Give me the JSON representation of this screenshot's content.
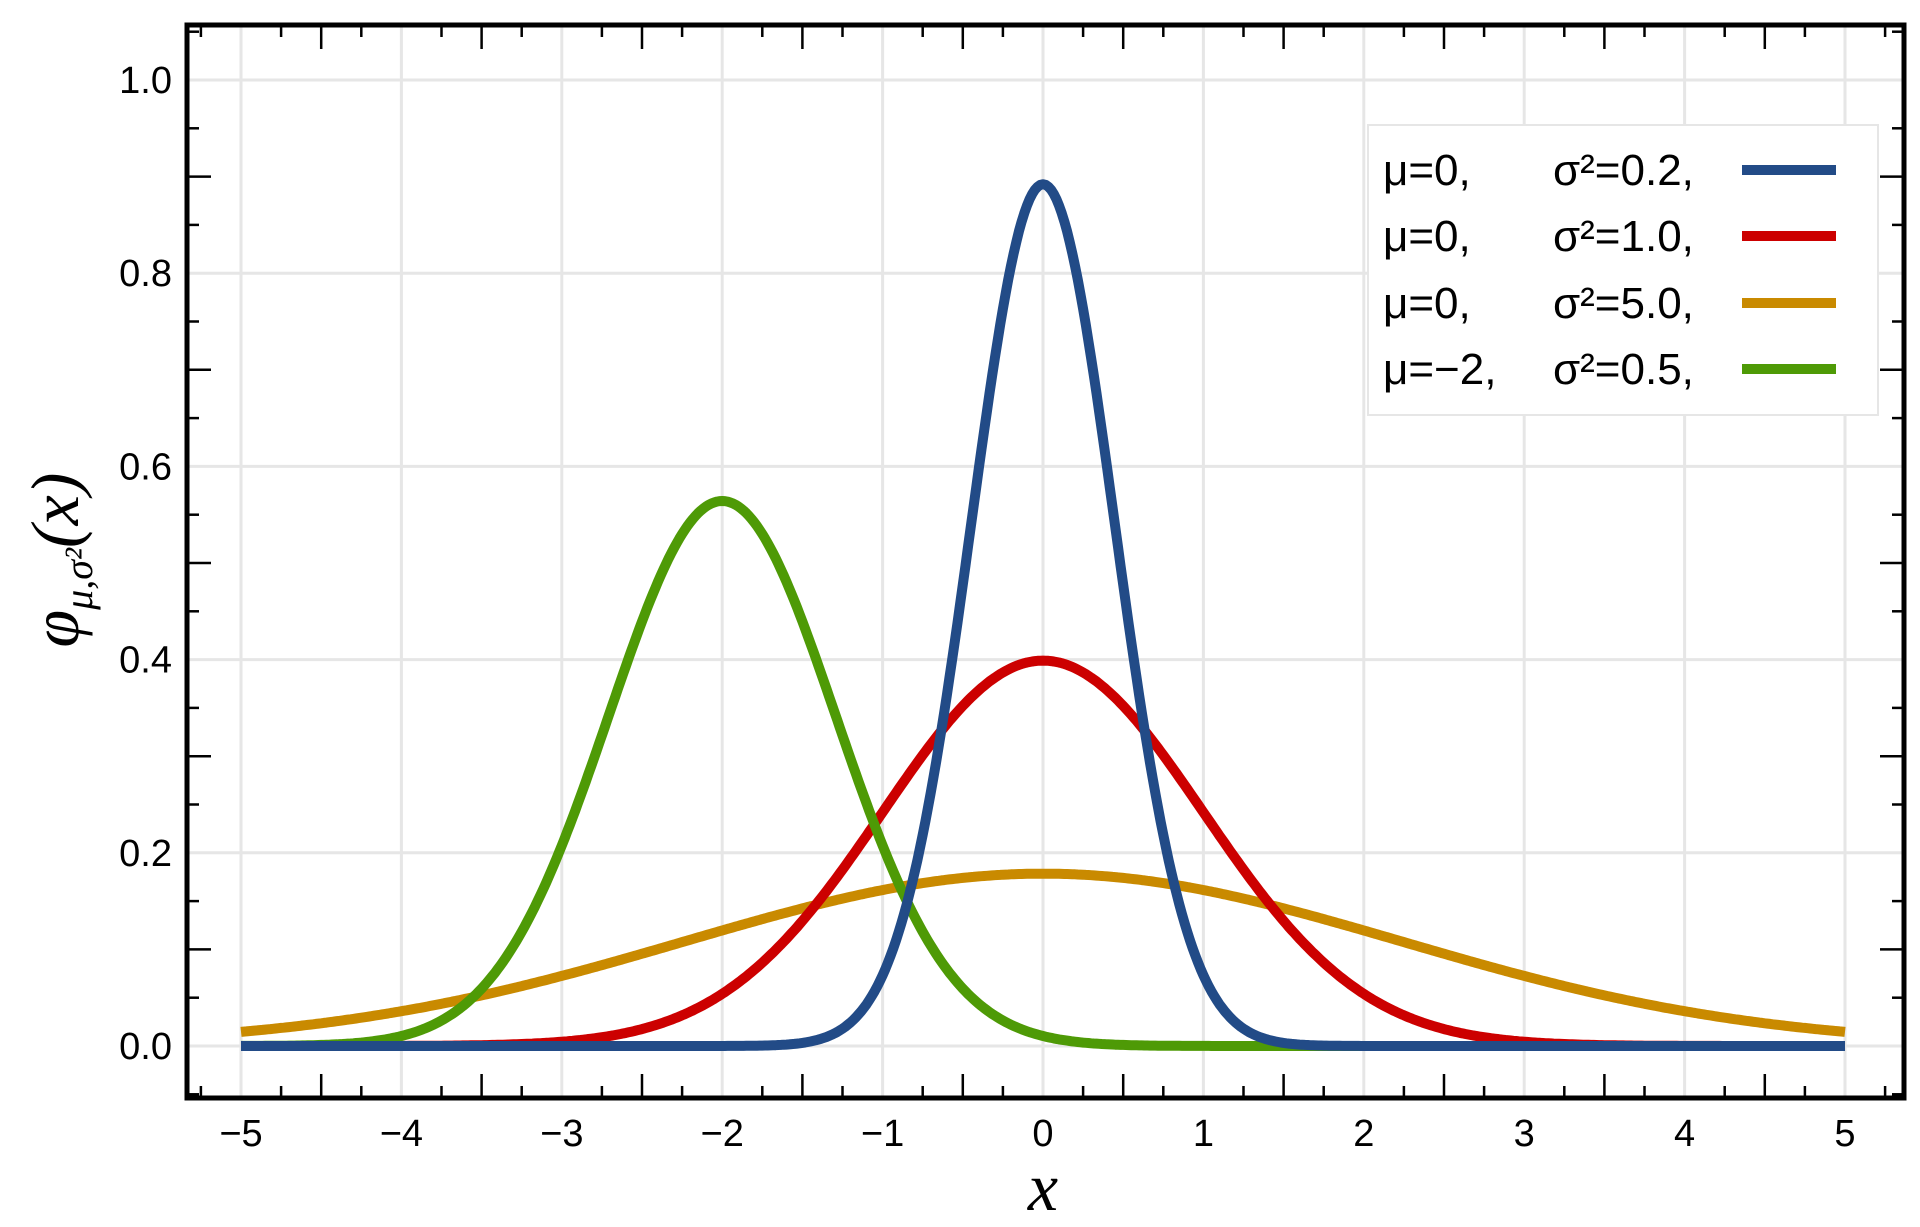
{
  "chart_data": {
    "type": "line",
    "title": "",
    "xlabel": "x",
    "ylabel": "φ_{μ,σ²}(x)",
    "ylabel_main": "φ",
    "ylabel_sub": "μ,σ²",
    "ylabel_arg": "(x)",
    "xlim": [
      -5.35,
      5.35
    ],
    "ylim": [
      -0.06,
      1.06
    ],
    "x_ticks": [
      -5,
      -4,
      -3,
      -2,
      -1,
      0,
      1,
      2,
      3,
      4,
      5
    ],
    "x_tick_labels": [
      "−5",
      "−4",
      "−3",
      "−2",
      "−1",
      "0",
      "1",
      "2",
      "3",
      "4",
      "5"
    ],
    "y_ticks": [
      0.0,
      0.2,
      0.4,
      0.6,
      0.8,
      1.0
    ],
    "y_tick_labels": [
      "0.0",
      "0.2",
      "0.4",
      "0.6",
      "0.8",
      "1.0"
    ],
    "grid": true,
    "legend_placement": "top-right",
    "function": "normal probability density",
    "x_range": [
      -5,
      5
    ],
    "series": [
      {
        "name": "μ=0,  σ²=0.2,",
        "mu_label": "μ=0,",
        "sigma_label": "σ²=0.2,",
        "mu": 0,
        "sigma2": 0.2,
        "color": "#224b87",
        "peak": 0.892
      },
      {
        "name": "μ=0,  σ²=1.0,",
        "mu_label": "μ=0,",
        "sigma_label": "σ²=1.0,",
        "mu": 0,
        "sigma2": 1.0,
        "color": "#cc0000",
        "peak": 0.399
      },
      {
        "name": "μ=0,  σ²=5.0,",
        "mu_label": "μ=0,",
        "sigma_label": "σ²=5.0,",
        "mu": 0,
        "sigma2": 5.0,
        "color": "#c98a00",
        "peak": 0.178
      },
      {
        "name": "μ=−2, σ²=0.5,",
        "mu_label": "μ=−2,",
        "sigma_label": "σ²=0.5,",
        "mu": -2,
        "sigma2": 0.5,
        "color": "#4e9a06",
        "peak": 0.564
      }
    ]
  }
}
